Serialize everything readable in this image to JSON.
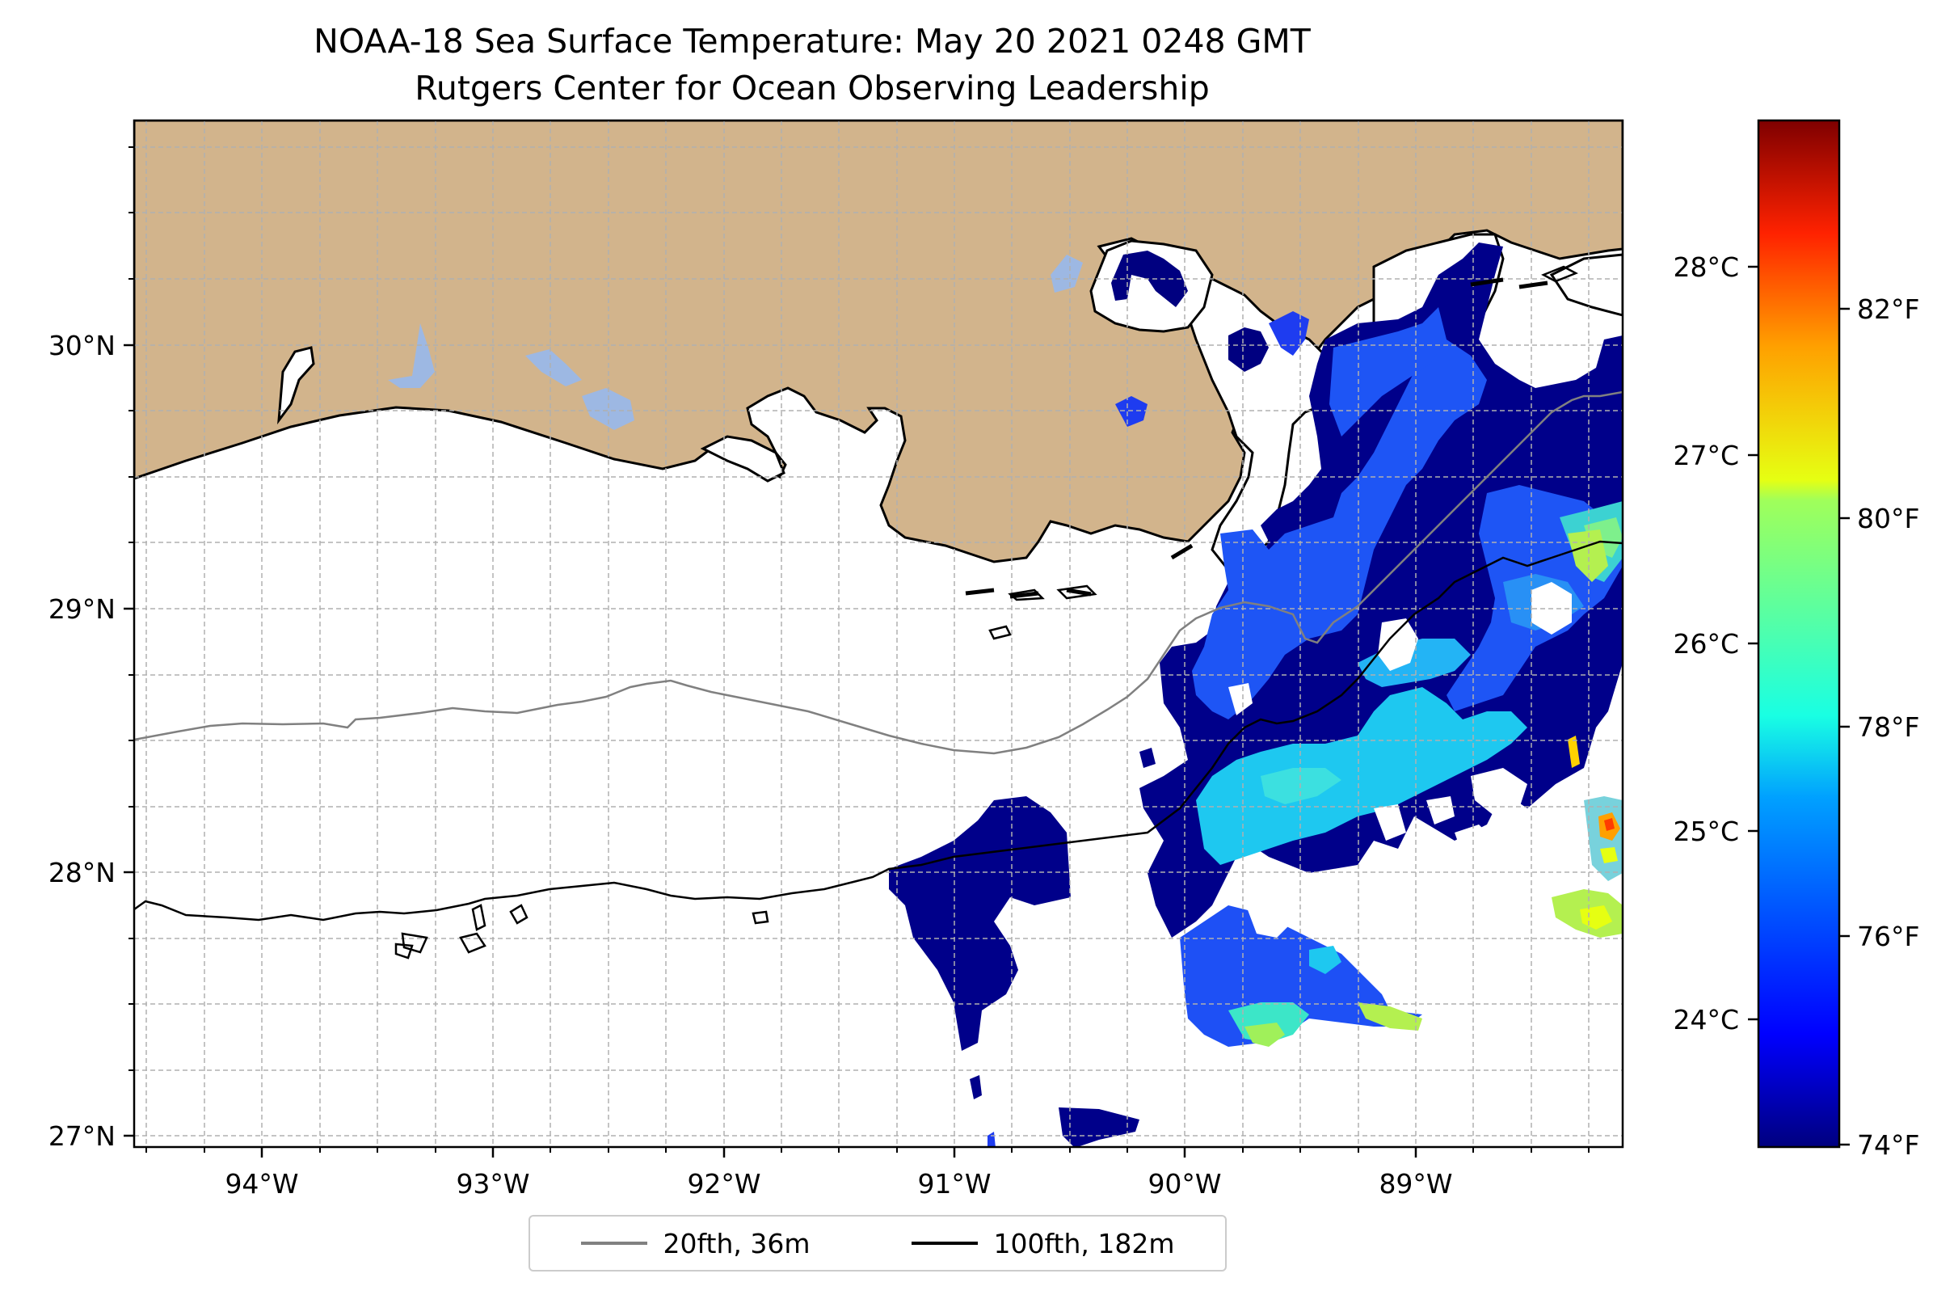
{
  "title": {
    "line1": "NOAA-18 Sea Surface Temperature: May 20 2021 0248 GMT",
    "line2": "Rutgers Center for Ocean Observing Leadership"
  },
  "map": {
    "land_color": "#d2b48c",
    "lake_color": "#9db8e3",
    "lon_ticks": [
      "94°W",
      "93°W",
      "92°W",
      "91°W",
      "90°W",
      "89°W"
    ],
    "lat_ticks": [
      "30°N",
      "29°N",
      "28°N",
      "27°N"
    ]
  },
  "colorbar": {
    "colormap": "jet",
    "celsius_ticks": [
      "28°C",
      "27°C",
      "26°C",
      "25°C",
      "24°C"
    ],
    "fahrenheit_ticks": [
      "82°F",
      "80°F",
      "78°F",
      "76°F",
      "74°F"
    ]
  },
  "legend": {
    "items": [
      {
        "label": "20fth, 36m",
        "color": "#808080"
      },
      {
        "label": "100fth, 182m",
        "color": "#000000"
      }
    ]
  }
}
